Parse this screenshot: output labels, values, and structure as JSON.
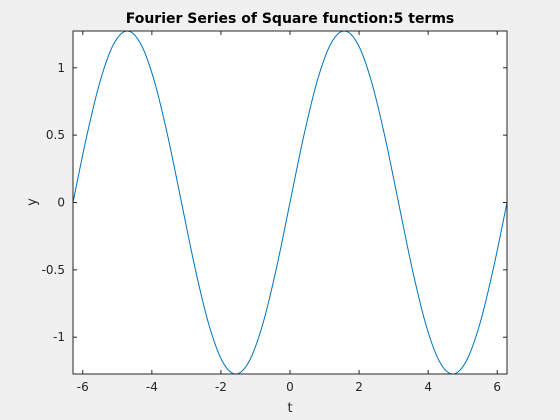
{
  "chart_data": {
    "type": "line",
    "title": "Fourier Series of Square function:5 terms",
    "xlabel": "t",
    "ylabel": "y",
    "xlim": [
      -6.283185307,
      6.283185307
    ],
    "ylim": [
      -1.2732,
      1.2732
    ],
    "x_ticks": [
      -6,
      -4,
      -2,
      0,
      2,
      4,
      6
    ],
    "x_tick_labels": [
      "-6",
      "-4",
      "-2",
      "0",
      "2",
      "4",
      "6"
    ],
    "y_ticks": [
      -1,
      -0.5,
      0,
      0.5,
      1
    ],
    "y_tick_labels": [
      "-1",
      "-0.5",
      "0",
      "0.5",
      "1"
    ],
    "grid": false,
    "series": [
      {
        "color": "#0072bd",
        "x": [
          -6.2832,
          -5.8905,
          -5.4978,
          -5.1051,
          -4.7124,
          -4.3197,
          -3.927,
          -3.5343,
          -3.1416,
          -2.7489,
          -2.3562,
          -1.9635,
          -1.5708,
          -1.1781,
          -0.7854,
          -0.3927,
          0.0,
          0.3927,
          0.7854,
          1.1781,
          1.5708,
          1.9635,
          2.3562,
          2.7489,
          3.1416,
          3.5343,
          3.927,
          4.3197,
          4.7124,
          5.1051,
          5.4978,
          5.8905,
          6.2832
        ],
        "y": [
          0.0,
          0.4872,
          0.9003,
          1.1763,
          1.2732,
          1.1763,
          0.9003,
          0.4872,
          0.0,
          -0.4872,
          -0.9003,
          -1.1763,
          -1.2732,
          -1.1763,
          -0.9003,
          -0.4872,
          0.0,
          0.4872,
          0.9003,
          1.1763,
          1.2732,
          1.1763,
          0.9003,
          0.4872,
          0.0,
          -0.4872,
          -0.9003,
          -1.1763,
          -1.2732,
          -1.1763,
          -0.9003,
          -0.4872,
          0.0
        ]
      }
    ]
  },
  "colors": {
    "figure_background": "#f0f0f0",
    "axes_background": "#ffffff",
    "axis_color": "#262626",
    "line_color": "#0072bd"
  }
}
